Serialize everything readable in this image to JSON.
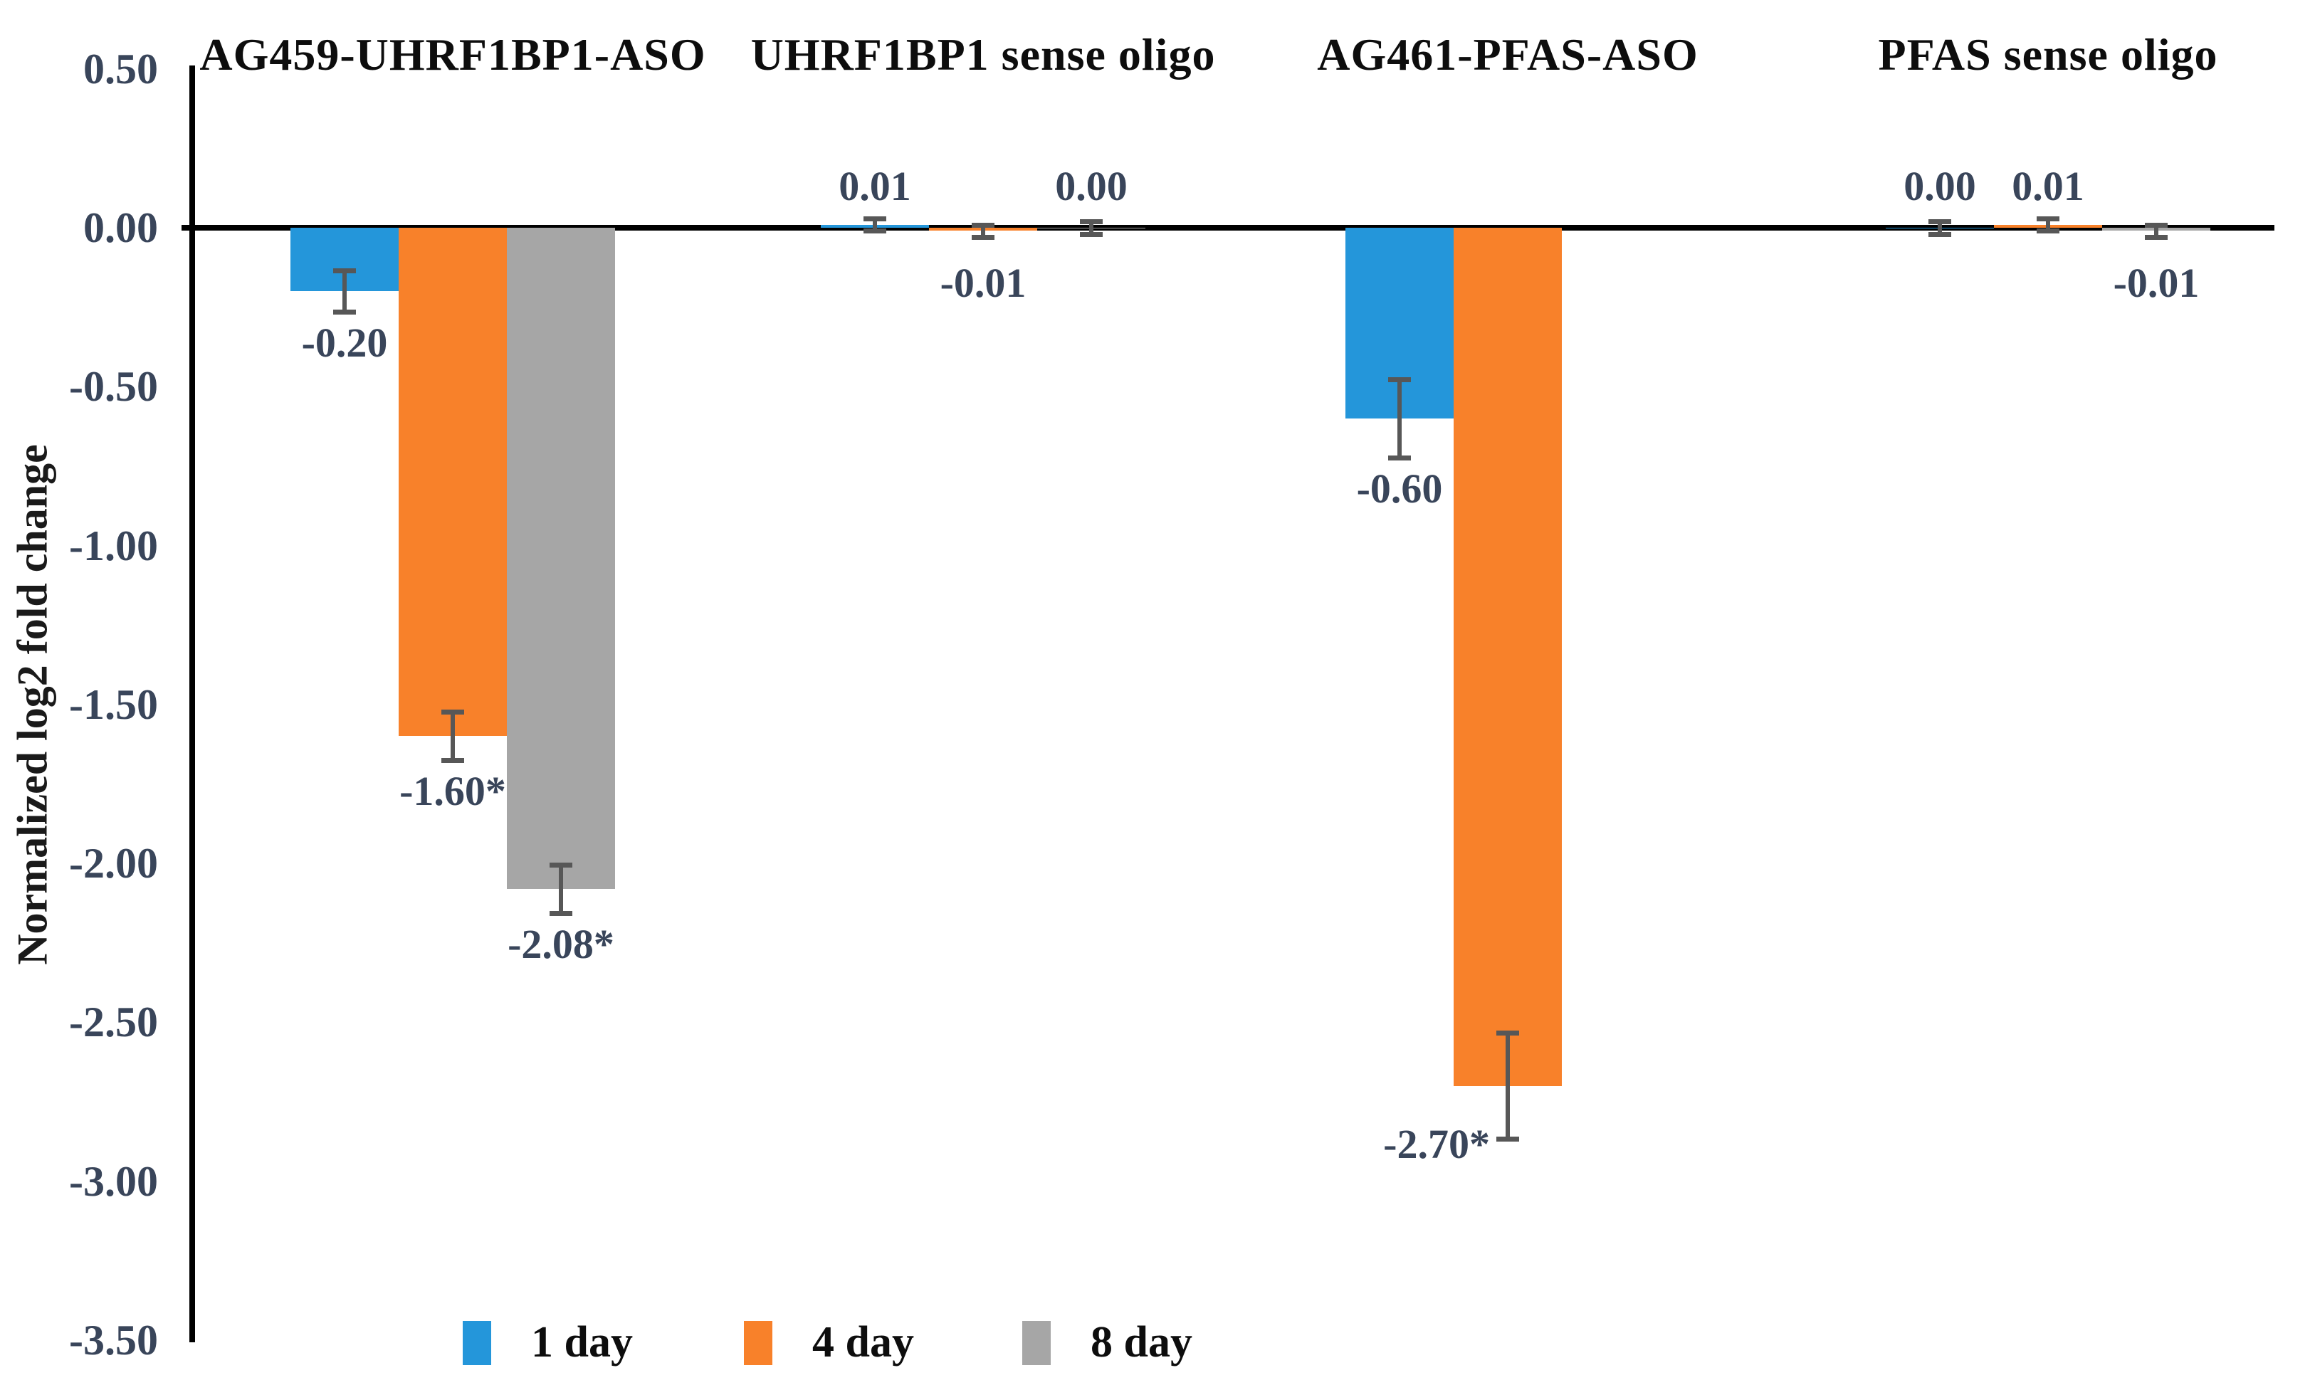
{
  "chart_data": {
    "type": "bar",
    "title": "",
    "xlabel": "",
    "ylabel": "Normalized log2 fold change",
    "ylim": [
      -3.5,
      0.5
    ],
    "ytick_step": 0.5,
    "ytick_labels": [
      "0.50",
      "0.00",
      "-0.50",
      "-1.00",
      "-1.50",
      "-2.00",
      "-2.50",
      "-3.00",
      "-3.50"
    ],
    "grid": false,
    "legend_position": "bottom",
    "series": [
      {
        "name": "1 day",
        "color": "#2496DA"
      },
      {
        "name": "4 day",
        "color": "#F8812A"
      },
      {
        "name": "8 day",
        "color": "#A6A6A6"
      }
    ],
    "error_bar_color": "#575757",
    "axis_color": "#000000",
    "label_color": "#39455A",
    "groups": [
      {
        "label": "AG459-UHRF1BP1-ASO",
        "values": [
          -0.2,
          -1.6,
          -2.08
        ],
        "value_labels": [
          "-0.20",
          "-1.60*",
          "-2.08*"
        ],
        "errors": [
          0.065,
          0.076,
          0.076
        ]
      },
      {
        "label": "UHRF1BP1 sense oligo",
        "values": [
          0.01,
          -0.01,
          0.0
        ],
        "value_labels": [
          "0.01",
          "-0.01",
          "0.00"
        ],
        "errors": [
          0.02,
          0.02,
          0.02
        ]
      },
      {
        "label": "AG461-PFAS-ASO",
        "values": [
          -0.6,
          -2.7,
          null
        ],
        "value_labels": [
          "-0.60",
          "-2.70*",
          null
        ],
        "errors": [
          0.123,
          0.167,
          null
        ],
        "label_beside_error": [
          false,
          true,
          false
        ]
      },
      {
        "label": "PFAS sense oligo",
        "values": [
          0.0,
          0.01,
          -0.01
        ],
        "value_labels": [
          "0.00",
          "0.01",
          "-0.01"
        ],
        "errors": [
          0.02,
          0.02,
          0.02
        ]
      }
    ]
  }
}
